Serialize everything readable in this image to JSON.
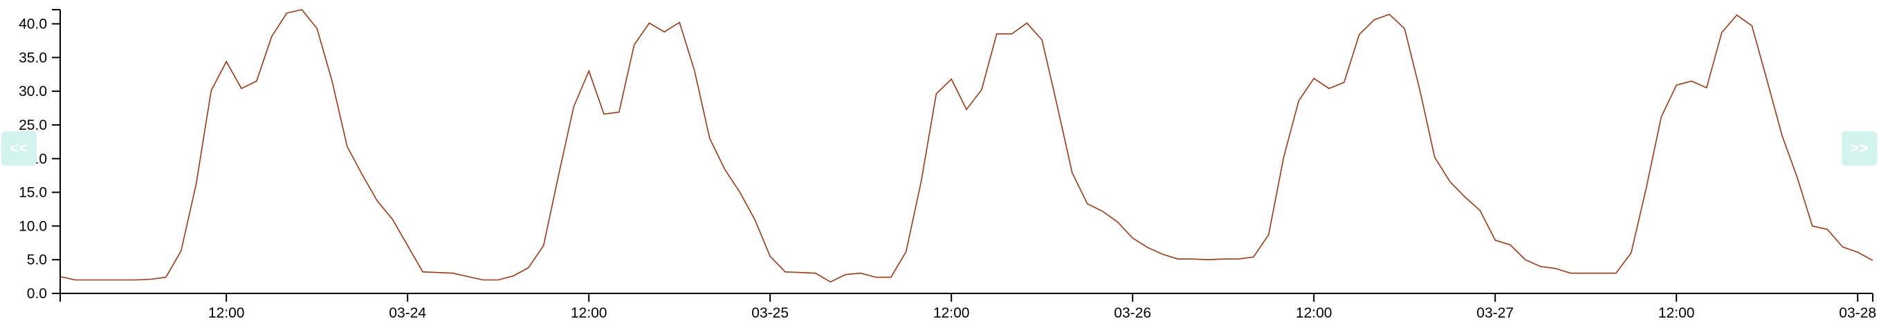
{
  "chart_data": {
    "type": "line",
    "title": "",
    "xlabel": "",
    "ylabel": "",
    "line_color": "#a0360f",
    "x_start": "03-23 01:00",
    "x_end": "03-28 01:00",
    "x_step": "1 hour",
    "ylim": [
      0,
      42.1
    ],
    "y_ticks": [
      "0.0",
      "5.0",
      "10.0",
      "15.0",
      "20.0",
      "25.0",
      "30.0",
      "35.0",
      "40.0"
    ],
    "x_ticks": [
      {
        "hours_from_start": 11,
        "label": "12:00"
      },
      {
        "hours_from_start": 23,
        "label": "03-24"
      },
      {
        "hours_from_start": 35,
        "label": "12:00"
      },
      {
        "hours_from_start": 47,
        "label": "03-25"
      },
      {
        "hours_from_start": 59,
        "label": "12:00"
      },
      {
        "hours_from_start": 71,
        "label": "03-26"
      },
      {
        "hours_from_start": 83,
        "label": "12:00"
      },
      {
        "hours_from_start": 95,
        "label": "03-27"
      },
      {
        "hours_from_start": 107,
        "label": "12:00"
      },
      {
        "hours_from_start": 119,
        "label": "03-28"
      }
    ],
    "grid": false,
    "values": [
      2.5,
      2.0,
      2.0,
      2.0,
      2.0,
      2.0,
      2.1,
      2.4,
      6.3,
      16.2,
      30.1,
      34.4,
      30.4,
      31.5,
      38.1,
      41.6,
      42.1,
      39.3,
      31.5,
      21.8,
      17.6,
      13.7,
      11.0,
      7.1,
      3.2,
      3.1,
      3.0,
      2.5,
      2.0,
      2.0,
      2.6,
      3.8,
      7.1,
      17.6,
      27.7,
      33.0,
      26.6,
      26.9,
      36.9,
      40.1,
      38.8,
      40.2,
      33.0,
      23.0,
      18.4,
      15.0,
      10.9,
      5.5,
      3.2,
      3.1,
      3.0,
      1.7,
      2.8,
      3.0,
      2.4,
      2.4,
      6.2,
      16.6,
      29.6,
      31.8,
      27.3,
      30.2,
      38.5,
      38.5,
      40.1,
      37.6,
      27.9,
      17.9,
      13.3,
      12.2,
      10.6,
      8.2,
      6.8,
      5.8,
      5.1,
      5.1,
      5.0,
      5.1,
      5.1,
      5.4,
      8.7,
      20.2,
      28.6,
      31.9,
      30.4,
      31.3,
      38.4,
      40.6,
      41.4,
      39.3,
      30.3,
      20.2,
      16.6,
      14.3,
      12.3,
      7.9,
      7.2,
      5.0,
      4.0,
      3.7,
      3.0,
      3.0,
      3.0,
      3.0,
      6.0,
      15.6,
      26.2,
      30.9,
      31.5,
      30.5,
      38.7,
      41.3,
      39.7,
      31.6,
      23.4,
      17.2,
      10.0,
      9.5,
      6.9,
      6.1,
      4.9
    ]
  },
  "nav": {
    "prev_label": "<<",
    "next_label": ">>",
    "button_color": "#d3f3ef"
  }
}
